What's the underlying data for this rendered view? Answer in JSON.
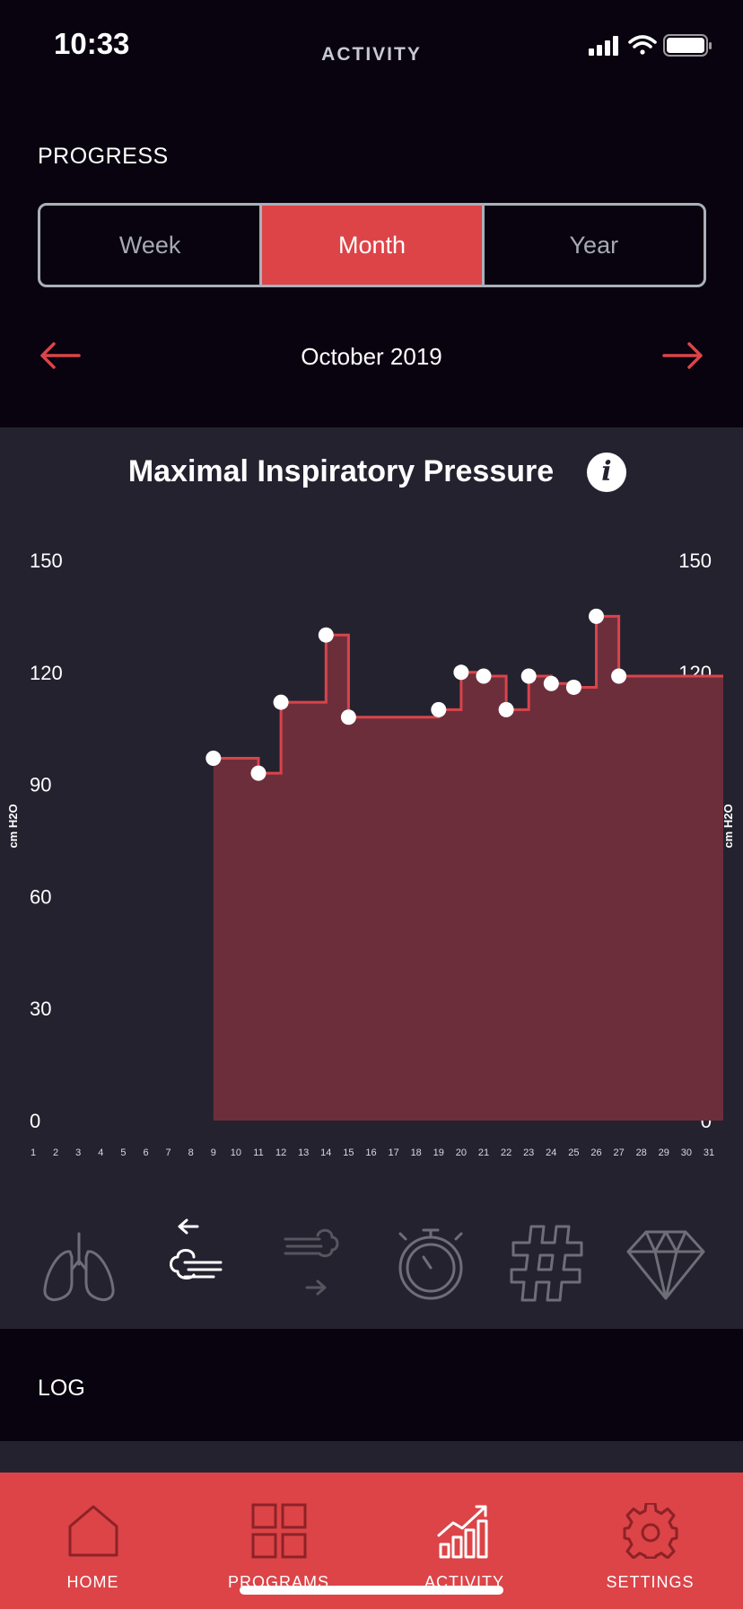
{
  "status": {
    "time": "10:33"
  },
  "header": {
    "title": "ACTIVITY"
  },
  "progress": {
    "label": "PROGRESS",
    "segments": [
      {
        "label": "Week",
        "active": false
      },
      {
        "label": "Month",
        "active": true
      },
      {
        "label": "Year",
        "active": false
      }
    ]
  },
  "period": {
    "label": "October 2019"
  },
  "chart": {
    "title": "Maximal Inspiratory Pressure",
    "info_icon": "info-icon"
  },
  "chart_data": {
    "type": "area",
    "title": "Maximal Inspiratory Pressure",
    "xlabel": "",
    "ylabel": "cm H2O",
    "ylabel_right": "cm H2O",
    "x_ticks": [
      "1",
      "2",
      "3",
      "4",
      "5",
      "6",
      "7",
      "8",
      "9",
      "10",
      "11",
      "12",
      "13",
      "14",
      "15",
      "16",
      "17",
      "18",
      "19",
      "20",
      "21",
      "22",
      "23",
      "24",
      "25",
      "26",
      "27",
      "28",
      "29",
      "30",
      "31"
    ],
    "y_ticks": [
      "0",
      "30",
      "60",
      "90",
      "120",
      "150"
    ],
    "xlim": [
      1,
      31
    ],
    "ylim": [
      0,
      150
    ],
    "step": true,
    "grid": false,
    "legend": "none",
    "points": [
      {
        "x": 9,
        "y": 97
      },
      {
        "x": 11,
        "y": 93
      },
      {
        "x": 12,
        "y": 112
      },
      {
        "x": 14,
        "y": 130
      },
      {
        "x": 15,
        "y": 108
      },
      {
        "x": 19,
        "y": 110
      },
      {
        "x": 20,
        "y": 120
      },
      {
        "x": 21,
        "y": 119
      },
      {
        "x": 22,
        "y": 110
      },
      {
        "x": 23,
        "y": 119
      },
      {
        "x": 24,
        "y": 117
      },
      {
        "x": 25,
        "y": 116
      },
      {
        "x": 26,
        "y": 135
      },
      {
        "x": 27,
        "y": 119
      }
    ],
    "colors": {
      "line": "#d9444a",
      "fill": "#6d2e3c",
      "marker": "#ffffff"
    }
  },
  "metric_icons": [
    {
      "name": "lungs-icon",
      "active": false
    },
    {
      "name": "inspiratory-icon",
      "active": true
    },
    {
      "name": "expiratory-icon",
      "active": false
    },
    {
      "name": "stopwatch-icon",
      "active": false
    },
    {
      "name": "hashtag-icon",
      "active": false
    },
    {
      "name": "diamond-icon",
      "active": false
    }
  ],
  "log": {
    "label": "LOG"
  },
  "tabs": [
    {
      "label": "HOME",
      "icon": "home-icon"
    },
    {
      "label": "PROGRAMS",
      "icon": "grid-icon"
    },
    {
      "label": "ACTIVITY",
      "icon": "activity-chart-icon",
      "active": true
    },
    {
      "label": "SETTINGS",
      "icon": "gear-icon"
    }
  ],
  "colors": {
    "accent": "#dc4448",
    "background": "#08030f",
    "card": "#24222f"
  }
}
